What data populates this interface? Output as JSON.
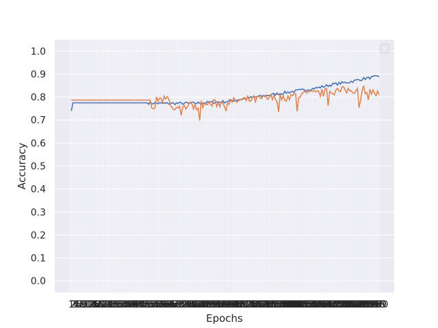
{
  "chart_data": {
    "type": "line",
    "title": "",
    "xlabel": "Epochs",
    "ylabel": "Accuracy",
    "ylim": [
      -0.05,
      1.05
    ],
    "yticks": [
      "0.0",
      "0.1",
      "0.2",
      "0.3",
      "0.4",
      "0.5",
      "0.6",
      "0.7",
      "0.8",
      "0.9",
      "1.0"
    ],
    "xlim": [
      0,
      200
    ],
    "grid": true,
    "legend": "top-right (empty box)",
    "x_tick_labels": "dense overlapping epoch indices 1-200",
    "series": [
      {
        "color": "#4c72b0",
        "anchors": [
          [
            1,
            0.74
          ],
          [
            2,
            0.775
          ],
          [
            50,
            0.775
          ],
          [
            60,
            0.772
          ],
          [
            80,
            0.773
          ],
          [
            100,
            0.78
          ],
          [
            110,
            0.79
          ],
          [
            120,
            0.8
          ],
          [
            130,
            0.81
          ],
          [
            140,
            0.82
          ],
          [
            150,
            0.83
          ],
          [
            160,
            0.84
          ],
          [
            170,
            0.855
          ],
          [
            180,
            0.865
          ],
          [
            190,
            0.88
          ],
          [
            200,
            0.89
          ]
        ],
        "noise": 0.006
      },
      {
        "color": "#dd8452",
        "anchors": [
          [
            1,
            0.787
          ],
          [
            52,
            0.787
          ],
          [
            54,
            0.735
          ],
          [
            56,
            0.787
          ],
          [
            64,
            0.787
          ],
          [
            66,
            0.745
          ],
          [
            80,
            0.765
          ],
          [
            100,
            0.775
          ],
          [
            110,
            0.785
          ],
          [
            120,
            0.79
          ],
          [
            130,
            0.795
          ],
          [
            140,
            0.8
          ],
          [
            150,
            0.81
          ],
          [
            160,
            0.815
          ],
          [
            170,
            0.825
          ],
          [
            180,
            0.83
          ],
          [
            190,
            0.835
          ],
          [
            200,
            0.81
          ]
        ],
        "noise": 0.018
      }
    ]
  }
}
